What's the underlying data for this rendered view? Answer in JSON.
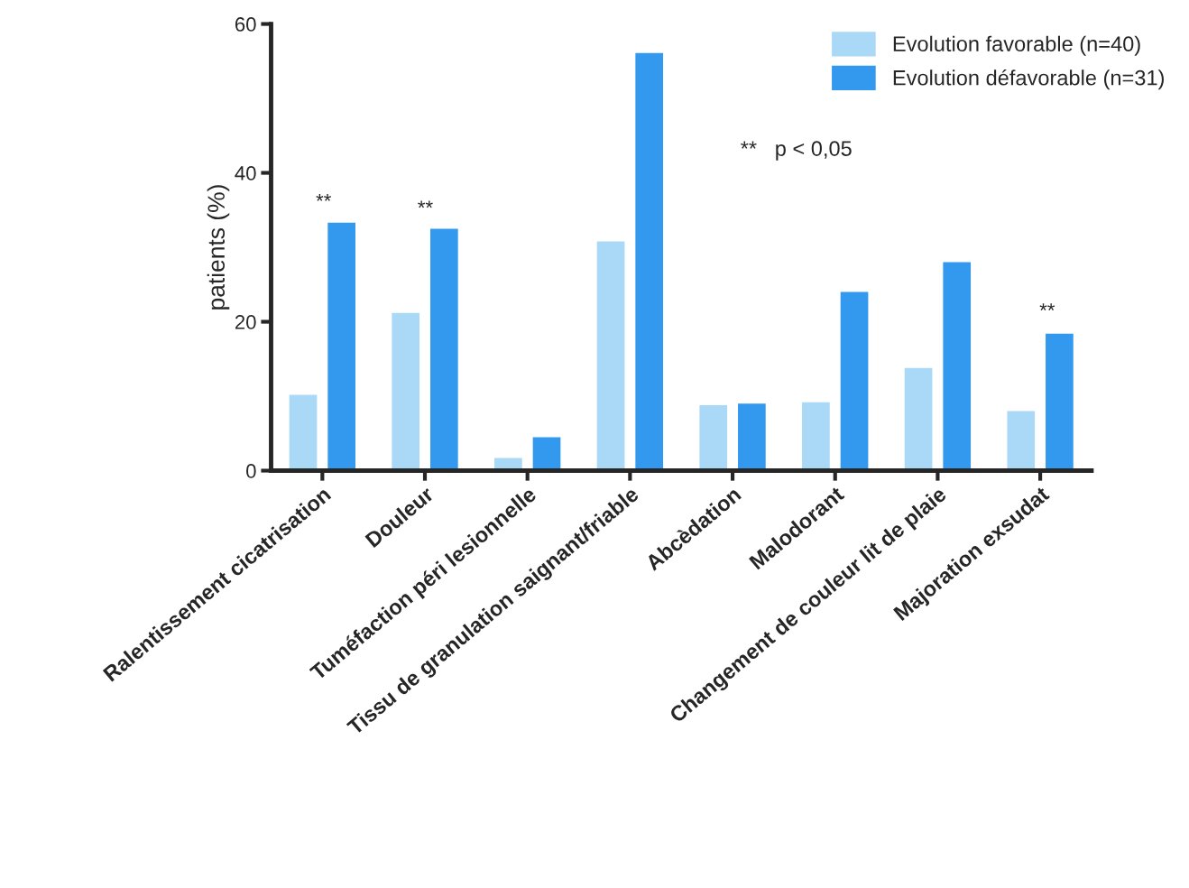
{
  "chart_data": {
    "type": "bar",
    "ylabel": "patients (%)",
    "categories": [
      "Ralentissement cicatrisation",
      "Douleur",
      "Tuméfaction péri lesionnelle",
      "Tissu de granulation saignant/friable",
      "Abcèdation",
      "Malodorant",
      "Changement de couleur lit de plaie",
      "Majoration exsudat"
    ],
    "series": [
      {
        "name": "Evolution favorable (n=40)",
        "color": "#a9d9f7",
        "values": [
          10.2,
          21.2,
          1.7,
          30.8,
          8.8,
          9.2,
          13.8,
          8.0
        ]
      },
      {
        "name": "Evolution défavorable (n=31)",
        "color": "#3399ee",
        "values": [
          33.3,
          32.5,
          4.5,
          56.1,
          9.0,
          24.0,
          28.0,
          18.4
        ]
      }
    ],
    "ylim": [
      0,
      60
    ],
    "yticks": [
      0,
      20,
      40,
      60
    ],
    "grid": false,
    "legend": "top right",
    "annotations": [
      "**",
      "**",
      "**",
      "**   p < 0,05"
    ]
  }
}
